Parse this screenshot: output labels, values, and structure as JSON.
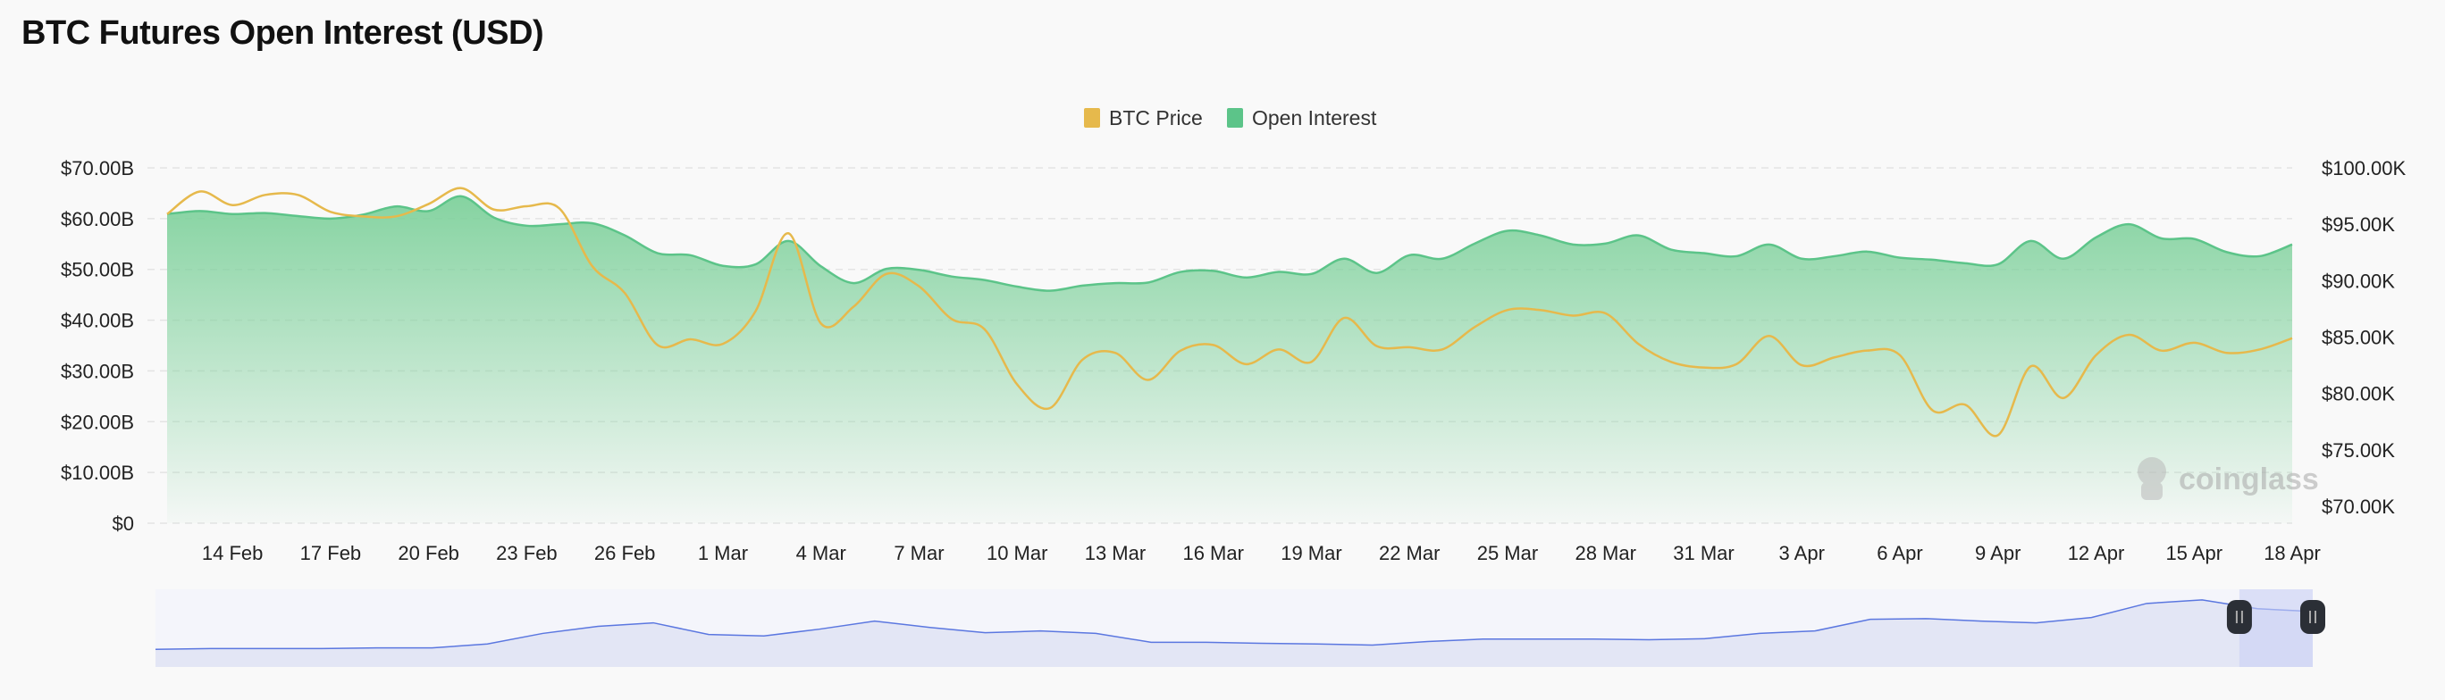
{
  "chart_data": {
    "type": "area",
    "title": "BTC Futures Open Interest (USD)",
    "legend_position": "top-center",
    "grid": true,
    "x_ticks": [
      "14 Feb",
      "17 Feb",
      "20 Feb",
      "23 Feb",
      "26 Feb",
      "1 Mar",
      "4 Mar",
      "7 Mar",
      "10 Mar",
      "13 Mar",
      "16 Mar",
      "19 Mar",
      "22 Mar",
      "25 Mar",
      "28 Mar",
      "31 Mar",
      "3 Apr",
      "6 Apr",
      "9 Apr",
      "12 Apr",
      "15 Apr",
      "18 Apr"
    ],
    "x_start": "12 Feb",
    "x_end": "18 Apr",
    "y_left": {
      "ticks": [
        "$0",
        "$10.00B",
        "$20.00B",
        "$30.00B",
        "$40.00B",
        "$50.00B",
        "$60.00B",
        "$70.00B"
      ],
      "min": 0,
      "max": 70,
      "unit": "B USD"
    },
    "y_right": {
      "ticks": [
        "$70.00K",
        "$75.00K",
        "$80.00K",
        "$85.00K",
        "$90.00K",
        "$95.00K",
        "$100.00K"
      ],
      "min": 68.5,
      "max": 100,
      "unit": "K USD"
    },
    "series": [
      {
        "name": "BTC Price",
        "axis": "right",
        "color": "#e6b94c",
        "values": [
          95.9,
          97.9,
          96.7,
          97.6,
          97.6,
          96.1,
          95.7,
          95.7,
          96.8,
          98.2,
          96.3,
          96.6,
          96.4,
          91.3,
          88.9,
          84.3,
          84.8,
          84.4,
          87.3,
          94.2,
          86.2,
          87.7,
          90.6,
          89.5,
          86.6,
          85.7,
          80.8,
          78.7,
          83.0,
          83.6,
          81.2,
          83.8,
          84.3,
          82.6,
          83.9,
          82.8,
          86.7,
          84.2,
          84.1,
          83.9,
          85.9,
          87.4,
          87.4,
          86.9,
          87.1,
          84.4,
          82.8,
          82.3,
          82.6,
          85.1,
          82.5,
          83.2,
          83.8,
          83.4,
          78.5,
          79.0,
          76.3,
          82.4,
          79.6,
          83.4,
          85.2,
          83.8,
          84.5,
          83.6,
          83.9,
          84.9
        ]
      },
      {
        "name": "Open Interest",
        "axis": "left",
        "color": "#5cc489",
        "values": [
          60.9,
          61.5,
          60.9,
          61.1,
          60.5,
          60.0,
          60.8,
          62.4,
          61.5,
          64.4,
          60.2,
          58.6,
          58.9,
          59.1,
          56.7,
          53.2,
          52.8,
          50.7,
          51.0,
          55.6,
          50.6,
          47.3,
          50.1,
          49.9,
          48.6,
          47.9,
          46.6,
          45.8,
          46.8,
          47.3,
          47.4,
          49.5,
          49.7,
          48.4,
          49.5,
          49.1,
          52.1,
          49.3,
          52.8,
          52.1,
          55.1,
          57.6,
          56.7,
          54.9,
          55.1,
          56.7,
          53.9,
          53.2,
          52.6,
          54.9,
          52.1,
          52.6,
          53.5,
          52.3,
          51.9,
          51.2,
          51.0,
          55.6,
          52.1,
          56.3,
          58.9,
          56.1,
          56.0,
          53.4,
          52.6,
          54.9
        ]
      }
    ],
    "navigator": {
      "color": "#5b77e0",
      "selected_range_fraction": [
        0.966,
        1.0
      ],
      "relative_values": [
        50,
        52,
        52,
        52,
        54,
        54,
        65,
        95,
        115,
        125,
        92,
        88,
        107,
        130,
        112,
        97,
        102,
        95,
        70,
        70,
        67,
        65,
        62,
        72,
        79,
        79,
        79,
        77,
        80,
        95,
        102,
        135,
        137,
        130,
        125,
        140,
        180,
        190,
        165,
        157
      ]
    },
    "watermark": "coinglass"
  }
}
